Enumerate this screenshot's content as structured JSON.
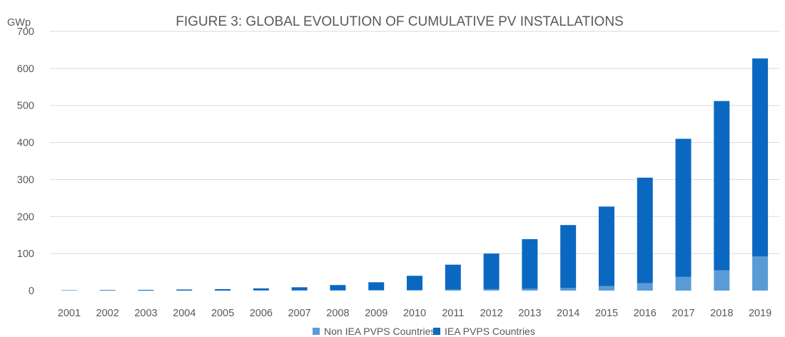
{
  "chart_data": {
    "type": "bar",
    "stacked": true,
    "title": "FIGURE 3: GLOBAL EVOLUTION OF CUMULATIVE PV INSTALLATIONS",
    "ylabel": "GWp",
    "xlabel": "",
    "ylim": [
      0,
      700
    ],
    "yticks": [
      0,
      100,
      200,
      300,
      400,
      500,
      600,
      700
    ],
    "grid": true,
    "legend_position": "bottom",
    "categories": [
      "2001",
      "2002",
      "2003",
      "2004",
      "2005",
      "2006",
      "2007",
      "2008",
      "2009",
      "2010",
      "2011",
      "2012",
      "2013",
      "2014",
      "2015",
      "2016",
      "2017",
      "2018",
      "2019"
    ],
    "series": [
      {
        "name": "Non IEA PVPS Countries",
        "color": "#5b9bd5",
        "values": [
          0,
          0,
          0,
          0,
          0,
          0.5,
          0.7,
          1,
          1.5,
          2,
          3,
          4,
          5,
          7,
          12,
          20,
          37,
          55,
          92
        ]
      },
      {
        "name": "IEA PVPS Countries",
        "color": "#0b68c1",
        "values": [
          1,
          1.5,
          2,
          3,
          4,
          5.5,
          8.3,
          14,
          21,
          38,
          67,
          96,
          134,
          170,
          215,
          285,
          373,
          457,
          535
        ]
      }
    ]
  }
}
